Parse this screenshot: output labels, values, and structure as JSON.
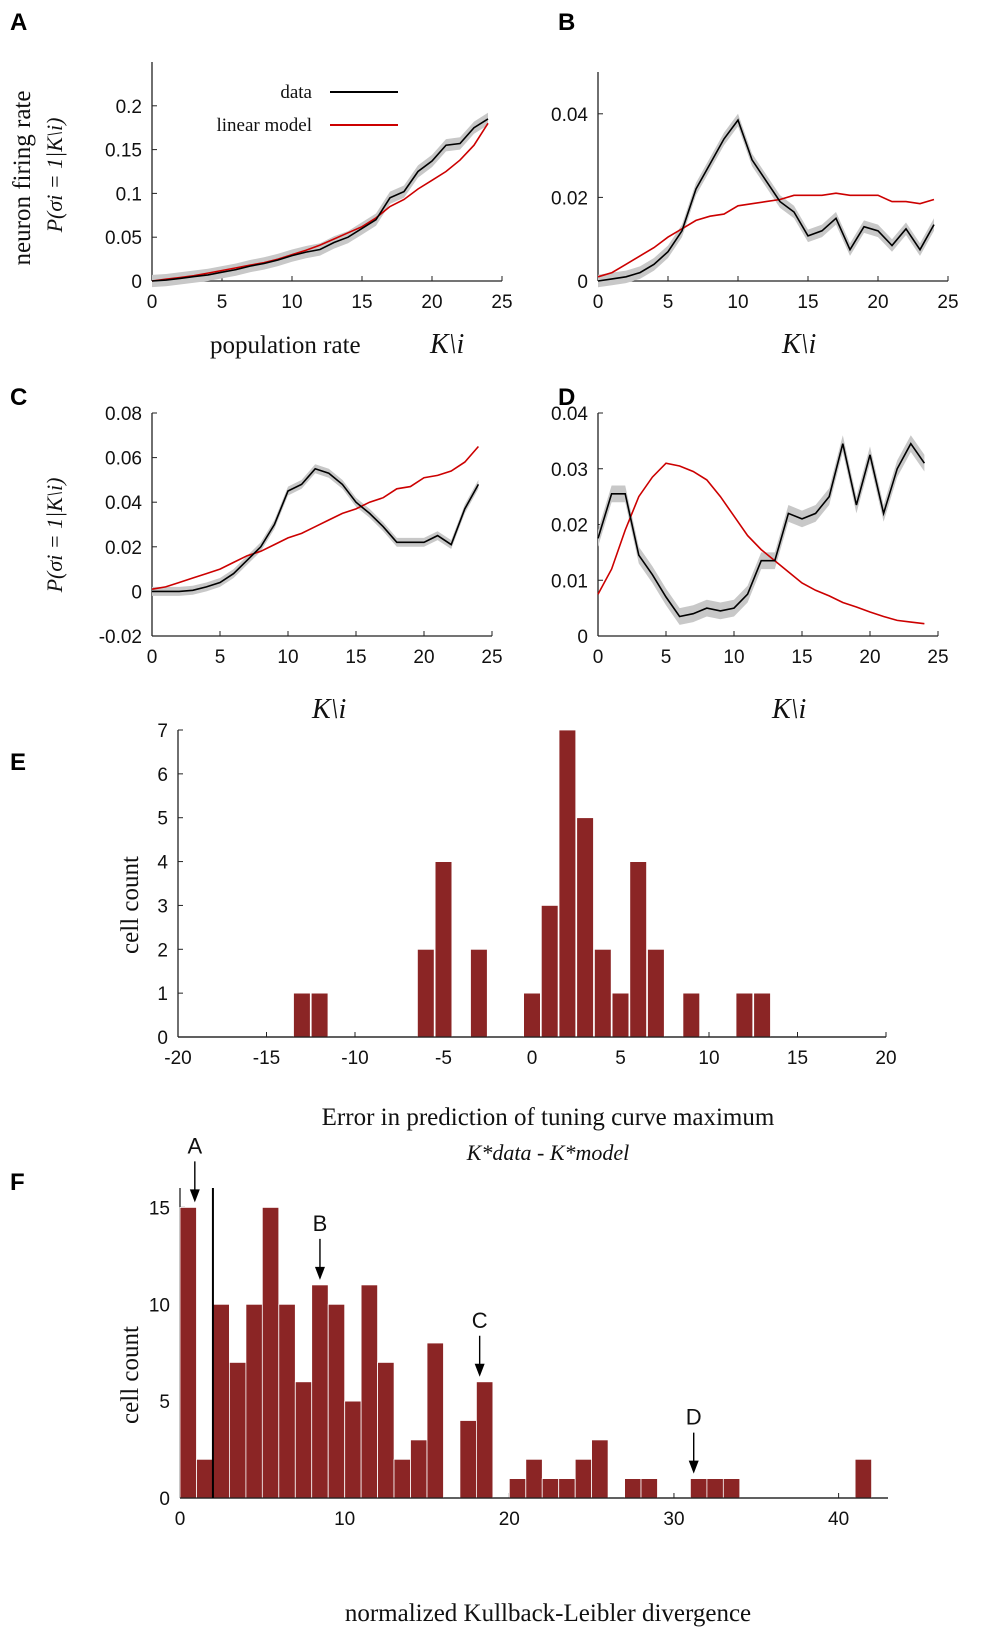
{
  "colors": {
    "data_line": "#000000",
    "model_line": "#cc0000",
    "band": "#c8c8c8",
    "bar": "#8b2525",
    "axis": "#222222"
  },
  "chart_data": [
    {
      "id": "A",
      "type": "line",
      "panel_label": "A",
      "xlabel": "population rate",
      "xlabel_math": "K\\i",
      "ylabel": "neuron firing rate",
      "ylabel_math": "P(σi = 1|K\\i)",
      "xlim": [
        0,
        25
      ],
      "ylim": [
        0,
        0.25
      ],
      "xticks": [
        0,
        5,
        10,
        15,
        20,
        25
      ],
      "xtick_labels": [
        "0",
        "5",
        "10",
        "15",
        "20",
        "25"
      ],
      "yticks": [
        0,
        0.05,
        0.1,
        0.15,
        0.2
      ],
      "ytick_labels": [
        "0",
        "0.05",
        "0.1",
        "0.15",
        "0.2"
      ],
      "legend": {
        "position": "top-left",
        "entries": [
          "data",
          "linear model"
        ]
      },
      "x": [
        0,
        1,
        2,
        3,
        4,
        5,
        6,
        7,
        8,
        9,
        10,
        11,
        12,
        13,
        14,
        15,
        16,
        17,
        18,
        19,
        20,
        21,
        22,
        23,
        24
      ],
      "series": [
        {
          "name": "data",
          "values": [
            0,
            0.001,
            0.003,
            0.005,
            0.007,
            0.01,
            0.013,
            0.017,
            0.02,
            0.024,
            0.029,
            0.033,
            0.036,
            0.044,
            0.05,
            0.06,
            0.07,
            0.095,
            0.102,
            0.125,
            0.137,
            0.155,
            0.157,
            0.175,
            0.185
          ],
          "band": 0.007
        },
        {
          "name": "linear model",
          "values": [
            0,
            0.002,
            0.004,
            0.006,
            0.009,
            0.012,
            0.015,
            0.018,
            0.021,
            0.025,
            0.03,
            0.035,
            0.041,
            0.048,
            0.055,
            0.062,
            0.072,
            0.085,
            0.093,
            0.105,
            0.115,
            0.125,
            0.138,
            0.155,
            0.18
          ]
        }
      ]
    },
    {
      "id": "B",
      "type": "line",
      "panel_label": "B",
      "xlabel": "",
      "xlabel_math": "K\\i",
      "ylabel": "",
      "ylabel_math": "",
      "xlim": [
        0,
        25
      ],
      "ylim": [
        0,
        0.05
      ],
      "xticks": [
        0,
        5,
        10,
        15,
        20,
        25
      ],
      "xtick_labels": [
        "0",
        "5",
        "10",
        "15",
        "20",
        "25"
      ],
      "yticks": [
        0,
        0.02,
        0.04
      ],
      "ytick_labels": [
        "0",
        "0.02",
        "0.04"
      ],
      "x": [
        0,
        1,
        2,
        3,
        4,
        5,
        6,
        7,
        8,
        9,
        10,
        11,
        12,
        13,
        14,
        15,
        16,
        17,
        18,
        19,
        20,
        21,
        22,
        23,
        24
      ],
      "series": [
        {
          "name": "data",
          "values": [
            0,
            0.0005,
            0.001,
            0.002,
            0.004,
            0.007,
            0.012,
            0.022,
            0.028,
            0.034,
            0.0385,
            0.029,
            0.024,
            0.019,
            0.0165,
            0.0108,
            0.012,
            0.015,
            0.0075,
            0.013,
            0.012,
            0.0085,
            0.0125,
            0.0075,
            0.0135
          ],
          "band": 0.0015
        },
        {
          "name": "linear model",
          "values": [
            0.001,
            0.002,
            0.004,
            0.006,
            0.008,
            0.0105,
            0.0125,
            0.0145,
            0.0155,
            0.016,
            0.018,
            0.0185,
            0.019,
            0.0195,
            0.0205,
            0.0205,
            0.0205,
            0.021,
            0.0205,
            0.0205,
            0.0205,
            0.019,
            0.019,
            0.0185,
            0.0195
          ]
        }
      ]
    },
    {
      "id": "C",
      "type": "line",
      "panel_label": "C",
      "xlabel": "",
      "xlabel_math": "K\\i",
      "ylabel": "",
      "ylabel_math": "P(σi = 1|K\\i)",
      "xlim": [
        0,
        25
      ],
      "ylim": [
        -0.02,
        0.08
      ],
      "xticks": [
        0,
        5,
        10,
        15,
        20,
        25
      ],
      "xtick_labels": [
        "0",
        "5",
        "10",
        "15",
        "20",
        "25"
      ],
      "yticks": [
        -0.02,
        0,
        0.02,
        0.04,
        0.06,
        0.08
      ],
      "ytick_labels": [
        "-0.02",
        "0",
        "0.02",
        "0.04",
        "0.06",
        "0.08"
      ],
      "x": [
        0,
        1,
        2,
        3,
        4,
        5,
        6,
        7,
        8,
        9,
        10,
        11,
        12,
        13,
        14,
        15,
        16,
        17,
        18,
        19,
        20,
        21,
        22,
        23,
        24
      ],
      "series": [
        {
          "name": "data",
          "values": [
            0,
            0,
            0,
            0.0005,
            0.002,
            0.004,
            0.008,
            0.014,
            0.02,
            0.03,
            0.045,
            0.048,
            0.055,
            0.053,
            0.048,
            0.04,
            0.035,
            0.029,
            0.022,
            0.022,
            0.022,
            0.025,
            0.021,
            0.037,
            0.048
          ],
          "band": 0.002
        },
        {
          "name": "linear model",
          "values": [
            0.001,
            0.002,
            0.004,
            0.006,
            0.008,
            0.01,
            0.013,
            0.016,
            0.018,
            0.021,
            0.024,
            0.026,
            0.029,
            0.032,
            0.035,
            0.037,
            0.04,
            0.042,
            0.046,
            0.047,
            0.051,
            0.052,
            0.054,
            0.058,
            0.065
          ]
        }
      ]
    },
    {
      "id": "D",
      "type": "line",
      "panel_label": "D",
      "xlabel": "",
      "xlabel_math": "K\\i",
      "ylabel": "",
      "ylabel_math": "",
      "xlim": [
        0,
        25
      ],
      "ylim": [
        0,
        0.04
      ],
      "xticks": [
        0,
        5,
        10,
        15,
        20,
        25
      ],
      "xtick_labels": [
        "0",
        "5",
        "10",
        "15",
        "20",
        "25"
      ],
      "yticks": [
        0,
        0.01,
        0.02,
        0.03,
        0.04
      ],
      "ytick_labels": [
        "0",
        "0.01",
        "0.02",
        "0.03",
        "0.04"
      ],
      "x": [
        0,
        1,
        2,
        3,
        4,
        5,
        6,
        7,
        8,
        9,
        10,
        11,
        12,
        13,
        14,
        15,
        16,
        17,
        18,
        19,
        20,
        21,
        22,
        23,
        24
      ],
      "series": [
        {
          "name": "data",
          "values": [
            0.0175,
            0.0255,
            0.0255,
            0.0145,
            0.011,
            0.007,
            0.0035,
            0.004,
            0.005,
            0.0045,
            0.005,
            0.0075,
            0.0135,
            0.0135,
            0.022,
            0.021,
            0.022,
            0.025,
            0.0345,
            0.0235,
            0.0325,
            0.022,
            0.03,
            0.0345,
            0.031
          ],
          "band": 0.0015
        },
        {
          "name": "linear model",
          "values": [
            0.0075,
            0.012,
            0.019,
            0.025,
            0.0285,
            0.031,
            0.0305,
            0.0295,
            0.028,
            0.025,
            0.0215,
            0.018,
            0.0155,
            0.0135,
            0.0115,
            0.0095,
            0.0082,
            0.0072,
            0.006,
            0.0052,
            0.0043,
            0.0035,
            0.0028,
            0.0025,
            0.0022
          ]
        }
      ]
    },
    {
      "id": "E",
      "type": "bar",
      "panel_label": "E",
      "xlabel": "Error in prediction of tuning curve maximum",
      "xlabel_math": "K*data - K*model",
      "ylabel": "cell count",
      "xlim": [
        -20,
        20
      ],
      "ylim": [
        0,
        7
      ],
      "xticks": [
        -20,
        -15,
        -10,
        -5,
        0,
        5,
        10,
        15,
        20
      ],
      "xtick_labels": [
        "-20",
        "-15",
        "-10",
        "-5",
        "0",
        "5",
        "10",
        "15",
        "20"
      ],
      "yticks": [
        0,
        1,
        2,
        3,
        4,
        5,
        6,
        7
      ],
      "ytick_labels": [
        "0",
        "1",
        "2",
        "3",
        "4",
        "5",
        "6",
        "7"
      ],
      "bin_width": 0.95,
      "bin_centers": [
        -13,
        -12,
        -6,
        -5,
        -3,
        0,
        1,
        2,
        3,
        4,
        5,
        6,
        7,
        9,
        12,
        13
      ],
      "values": [
        1,
        1,
        2,
        4,
        2,
        1,
        3,
        7,
        5,
        2,
        1,
        4,
        2,
        1,
        1,
        1
      ]
    },
    {
      "id": "F",
      "type": "bar",
      "panel_label": "F",
      "xlabel": "normalized Kullback-Leibler divergence",
      "ylabel": "cell count",
      "xlim": [
        0,
        43
      ],
      "ylim": [
        0,
        16
      ],
      "xticks": [
        0,
        10,
        20,
        30,
        40
      ],
      "xtick_labels": [
        "0",
        "10",
        "20",
        "30",
        "40"
      ],
      "yticks": [
        0,
        5,
        10,
        15
      ],
      "ytick_labels": [
        "0",
        "5",
        "10",
        "15"
      ],
      "bin_width": 1,
      "bin_centers": [
        0.5,
        1.5,
        2.5,
        3.5,
        4.5,
        5.5,
        6.5,
        7.5,
        8.5,
        9.5,
        10.5,
        11.5,
        12.5,
        13.5,
        14.5,
        15.5,
        17.5,
        18.5,
        20.5,
        21.5,
        22.5,
        23.5,
        24.5,
        25.5,
        27.5,
        28.5,
        31.5,
        32.5,
        33.5,
        41.5
      ],
      "values": [
        15,
        2,
        10,
        7,
        10,
        15,
        10,
        6,
        11,
        10,
        5,
        11,
        7,
        2,
        3,
        8,
        4,
        6,
        1,
        2,
        1,
        1,
        2,
        3,
        1,
        1,
        1,
        1,
        1,
        2
      ],
      "threshold_x": 2,
      "annotations": [
        {
          "label": "A",
          "x": 0.9
        },
        {
          "label": "B",
          "x": 8.5
        },
        {
          "label": "C",
          "x": 18.2
        },
        {
          "label": "D",
          "x": 31.2
        }
      ]
    }
  ]
}
